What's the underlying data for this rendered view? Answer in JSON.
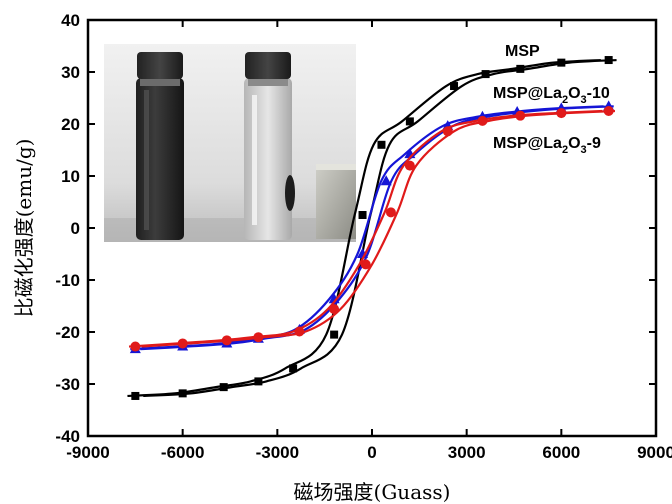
{
  "chart_data": {
    "type": "line",
    "xlabel": "磁场强度(Guass)",
    "ylabel": "比磁化强度(emu/g)",
    "xlim": [
      -9000,
      9000
    ],
    "ylim": [
      -40,
      40
    ],
    "xticks": [
      -9000,
      -6000,
      -3000,
      0,
      3000,
      6000,
      9000
    ],
    "yticks": [
      -40,
      -30,
      -20,
      -10,
      0,
      10,
      20,
      30,
      40
    ],
    "grid": false,
    "legend": "inline labels at top-right",
    "inset": "photograph of two sample vials beside a magnet (top-left)",
    "series": [
      {
        "name": "MSP",
        "name_main": "MSP",
        "name_sub": "",
        "name_tail": "",
        "color": "#000000",
        "marker": "square",
        "points": [
          [
            -7500,
            -32.3
          ],
          [
            -6000,
            -31.8
          ],
          [
            -4700,
            -30.6
          ],
          [
            -3600,
            -29.5
          ],
          [
            -2500,
            -27.0
          ],
          [
            -1200,
            -20.5
          ],
          [
            -300,
            2.5
          ],
          [
            300,
            16.0
          ],
          [
            1200,
            20.5
          ],
          [
            2600,
            27.3
          ],
          [
            3600,
            29.6
          ],
          [
            4700,
            30.6
          ],
          [
            6000,
            31.8
          ],
          [
            7500,
            32.3
          ]
        ]
      },
      {
        "name": "MSP@La2O3-10",
        "name_main": "MSP@La",
        "name_sub": "2",
        "name_mid": "O",
        "name_sub2": "3",
        "name_tail": "-10",
        "color": "#1515d6",
        "marker": "triangle",
        "points": [
          [
            -7500,
            -23.3
          ],
          [
            -6000,
            -22.8
          ],
          [
            -4600,
            -22.2
          ],
          [
            -3600,
            -21.3
          ],
          [
            -2300,
            -19.6
          ],
          [
            -1200,
            -13.7
          ],
          [
            -300,
            -5.0
          ],
          [
            450,
            9.0
          ],
          [
            1200,
            14.2
          ],
          [
            2400,
            19.6
          ],
          [
            3500,
            21.4
          ],
          [
            4600,
            22.3
          ],
          [
            6000,
            23.0
          ],
          [
            7500,
            23.4
          ]
        ]
      },
      {
        "name": "MSP@La2O3-9",
        "name_main": "MSP@La",
        "name_sub": "2",
        "name_mid": "O",
        "name_sub2": "3",
        "name_tail": "-9",
        "color": "#e01a1a",
        "marker": "circle",
        "points": [
          [
            -7500,
            -22.8
          ],
          [
            -6000,
            -22.2
          ],
          [
            -4600,
            -21.6
          ],
          [
            -3600,
            -21.0
          ],
          [
            -2300,
            -19.9
          ],
          [
            -1200,
            -15.6
          ],
          [
            -200,
            -7.0
          ],
          [
            600,
            3.0
          ],
          [
            1200,
            12.0
          ],
          [
            2400,
            18.6
          ],
          [
            3500,
            20.6
          ],
          [
            4700,
            21.6
          ],
          [
            6000,
            22.1
          ],
          [
            7500,
            22.5
          ]
        ]
      }
    ]
  }
}
